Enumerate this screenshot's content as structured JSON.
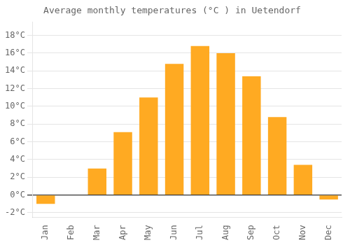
{
  "chart_data": {
    "type": "bar",
    "title": "Average monthly temperatures (°C ) in Uetendorf",
    "categories": [
      "Jan",
      "Feb",
      "Mar",
      "Apr",
      "May",
      "Jun",
      "Jul",
      "Aug",
      "Sep",
      "Oct",
      "Nov",
      "Dec"
    ],
    "values": [
      -1.0,
      0.0,
      3.0,
      7.1,
      11.0,
      14.8,
      16.8,
      16.0,
      13.4,
      8.8,
      3.4,
      -0.5
    ],
    "color": "#FFAA22",
    "ylim": [
      -2.5,
      19.5
    ],
    "yticks": [
      {
        "value": -2,
        "label": "-2°C"
      },
      {
        "value": 0,
        "label": "0°C"
      },
      {
        "value": 2,
        "label": "2°C"
      },
      {
        "value": 4,
        "label": "4°C"
      },
      {
        "value": 6,
        "label": "6°C"
      },
      {
        "value": 8,
        "label": "8°C"
      },
      {
        "value": 10,
        "label": "10°C"
      },
      {
        "value": 12,
        "label": "12°C"
      },
      {
        "value": 14,
        "label": "14°C"
      },
      {
        "value": 16,
        "label": "16°C"
      },
      {
        "value": 18,
        "label": "18°C"
      }
    ],
    "grid": true
  }
}
